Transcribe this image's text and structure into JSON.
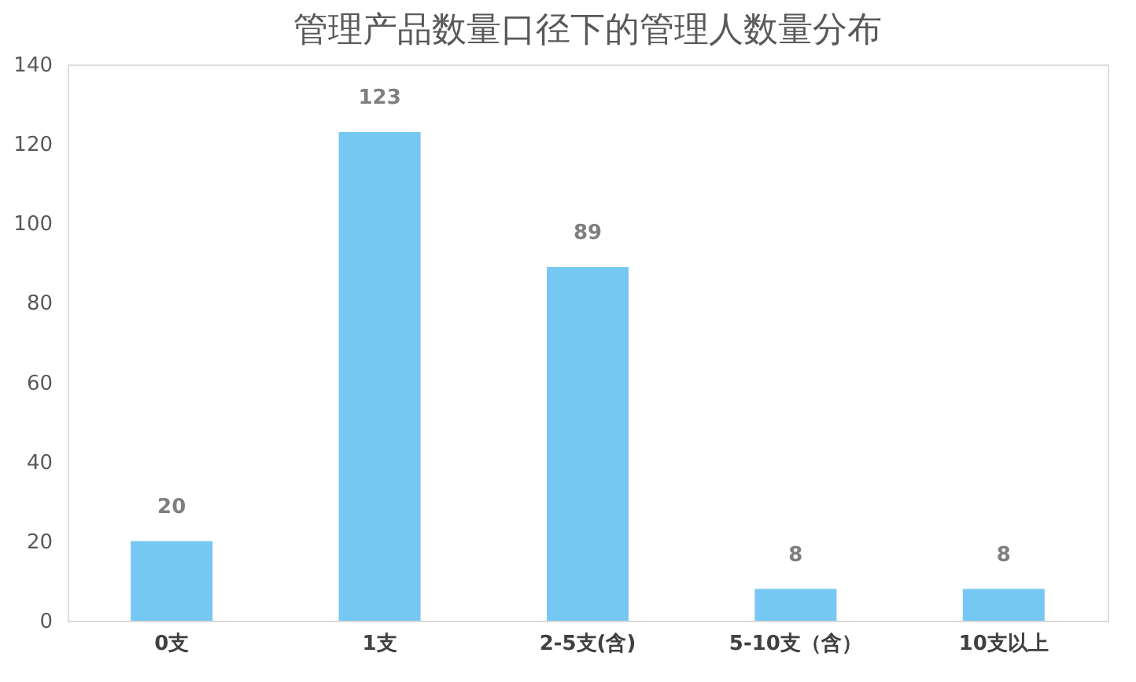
{
  "chart_data": {
    "type": "bar",
    "title": "管理产品数量口径下的管理人数量分布",
    "categories": [
      "0支",
      "1支",
      "2-5支(含)",
      "5-10支（含）",
      "10支以上"
    ],
    "values": [
      20,
      123,
      89,
      8,
      8
    ],
    "color": "#75c8f2",
    "ylim": [
      0,
      140
    ],
    "yticks": [
      0,
      20,
      40,
      60,
      80,
      100,
      120,
      140
    ],
    "grid": false,
    "data_labels": true
  }
}
